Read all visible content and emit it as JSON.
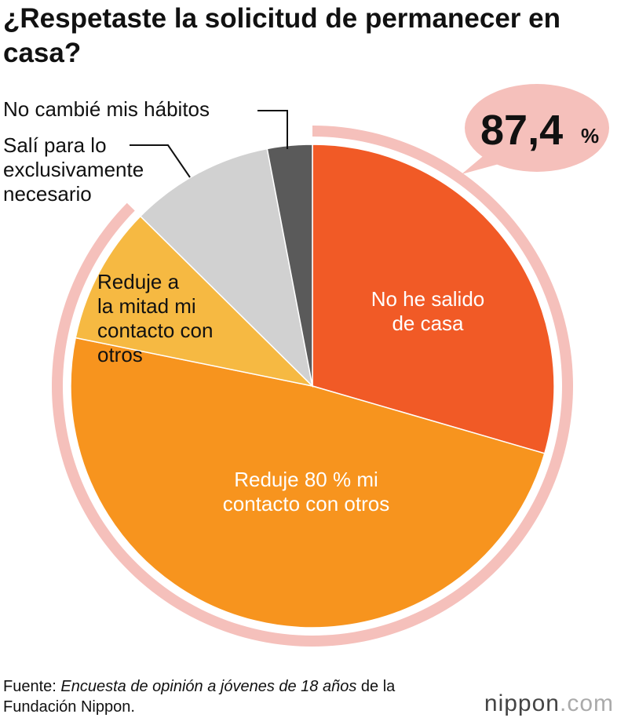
{
  "chart_data": {
    "type": "pie",
    "title": "¿Respetaste la solicitud de permanecer en casa?",
    "categories": [
      "No he salido\nde casa",
      "Reduje 80 % mi\ncontacto con otros",
      "Reduje a\nla mitad mi\ncontacto con\notros",
      "Salí para lo\nexclusivamente\nnecesario",
      "No cambié mis hábitos"
    ],
    "values": [
      29.5,
      48.7,
      9.2,
      9.6,
      3.0
    ],
    "colors": [
      "#f15a26",
      "#f7941e",
      "#f6b942",
      "#d1d1d1",
      "#5a5a5a"
    ],
    "callout": {
      "value": 87.4,
      "label": "87,4",
      "unit": "%",
      "color": "#f5c0bb"
    }
  },
  "source": {
    "prefix": "Fuente:",
    "title": "Encuesta de opinión a jóvenes de 18 años",
    "suffix": "de la Fundación Nippon."
  },
  "logo": {
    "name": "nippon",
    "domain": ".com"
  }
}
